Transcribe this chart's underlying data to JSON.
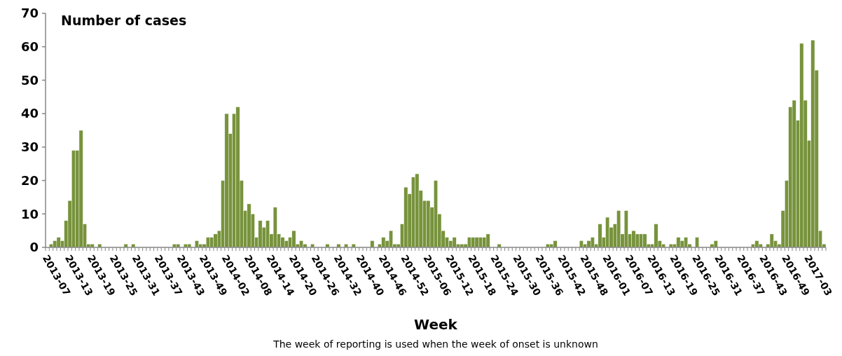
{
  "chart_data": {
    "type": "bar",
    "title": "Number of cases",
    "xlabel": "Week",
    "annotations": [
      "The week of reporting is used when the week of onset is unknown"
    ],
    "categories": [
      "2013-07",
      null,
      null,
      null,
      null,
      null,
      "2013-13",
      null,
      null,
      null,
      null,
      null,
      "2013-19",
      null,
      null,
      null,
      null,
      null,
      "2013-25",
      null,
      null,
      null,
      null,
      null,
      "2013-31",
      null,
      null,
      null,
      null,
      null,
      "2013-37",
      null,
      null,
      null,
      null,
      null,
      "2013-43",
      null,
      null,
      null,
      null,
      null,
      "2013-49",
      null,
      null,
      null,
      null,
      null,
      "2014-02",
      null,
      null,
      null,
      null,
      null,
      "2014-08",
      null,
      null,
      null,
      null,
      null,
      "2014-14",
      null,
      null,
      null,
      null,
      null,
      "2014-20",
      null,
      null,
      null,
      null,
      null,
      "2014-26",
      null,
      null,
      null,
      null,
      null,
      "2014-32",
      null,
      null,
      null,
      null,
      null,
      "2014-40",
      null,
      null,
      null,
      null,
      null,
      "2014-46",
      null,
      null,
      null,
      null,
      null,
      "2014-52",
      null,
      null,
      null,
      null,
      null,
      "2015-06",
      null,
      null,
      null,
      null,
      null,
      "2015-12",
      null,
      null,
      null,
      null,
      null,
      "2015-18",
      null,
      null,
      null,
      null,
      null,
      "2015-24",
      null,
      null,
      null,
      null,
      null,
      "2015-30",
      null,
      null,
      null,
      null,
      null,
      "2015-36",
      null,
      null,
      null,
      null,
      null,
      "2015-42",
      null,
      null,
      null,
      null,
      null,
      "2015-48",
      null,
      null,
      null,
      null,
      null,
      "2016-01",
      null,
      null,
      null,
      null,
      null,
      "2016-07",
      null,
      null,
      null,
      null,
      null,
      "2016-13",
      null,
      null,
      null,
      null,
      null,
      "2016-19",
      null,
      null,
      null,
      null,
      null,
      "2016-25",
      null,
      null,
      null,
      null,
      null,
      "2016-31",
      null,
      null,
      null,
      null,
      null,
      "2016-37",
      null,
      null,
      null,
      null,
      null,
      "2016-43",
      null,
      null,
      null,
      null,
      null,
      "2016-49",
      null,
      null,
      null,
      null,
      null,
      "2017-03",
      null,
      null,
      null,
      null
    ],
    "values": [
      0,
      1,
      2,
      3,
      2,
      8,
      14,
      29,
      29,
      35,
      7,
      1,
      1,
      0,
      1,
      0,
      0,
      0,
      0,
      0,
      0,
      1,
      0,
      1,
      0,
      0,
      0,
      0,
      0,
      0,
      0,
      0,
      0,
      0,
      1,
      1,
      0,
      1,
      1,
      0,
      2,
      1,
      1,
      3,
      3,
      4,
      5,
      20,
      40,
      34,
      40,
      42,
      20,
      11,
      13,
      10,
      3,
      8,
      6,
      8,
      4,
      12,
      4,
      3,
      2,
      3,
      5,
      1,
      2,
      1,
      0,
      1,
      0,
      0,
      0,
      1,
      0,
      0,
      1,
      0,
      1,
      0,
      1,
      0,
      0,
      0,
      0,
      2,
      0,
      1,
      3,
      2,
      5,
      1,
      1,
      7,
      18,
      16,
      21,
      22,
      17,
      14,
      14,
      12,
      20,
      10,
      5,
      3,
      2,
      3,
      1,
      1,
      1,
      3,
      3,
      3,
      3,
      3,
      4,
      0,
      0,
      1,
      0,
      0,
      0,
      0,
      0,
      0,
      0,
      0,
      0,
      0,
      0,
      0,
      1,
      1,
      2,
      0,
      0,
      0,
      0,
      0,
      0,
      2,
      1,
      2,
      3,
      1,
      7,
      3,
      9,
      6,
      7,
      11,
      4,
      11,
      4,
      5,
      4,
      4,
      4,
      1,
      1,
      7,
      2,
      1,
      0,
      1,
      1,
      3,
      2,
      3,
      1,
      0,
      3,
      0,
      0,
      0,
      1,
      2,
      0,
      0,
      0,
      0,
      0,
      0,
      0,
      0,
      0,
      1,
      2,
      1,
      0,
      1,
      4,
      2,
      1,
      11,
      20,
      42,
      44,
      38,
      61,
      44,
      32,
      62,
      53,
      5,
      1
    ],
    "color": "#77933c",
    "ylim": [
      0,
      70
    ],
    "yticks": [
      0,
      10,
      20,
      30,
      40,
      50,
      60,
      70
    ]
  }
}
